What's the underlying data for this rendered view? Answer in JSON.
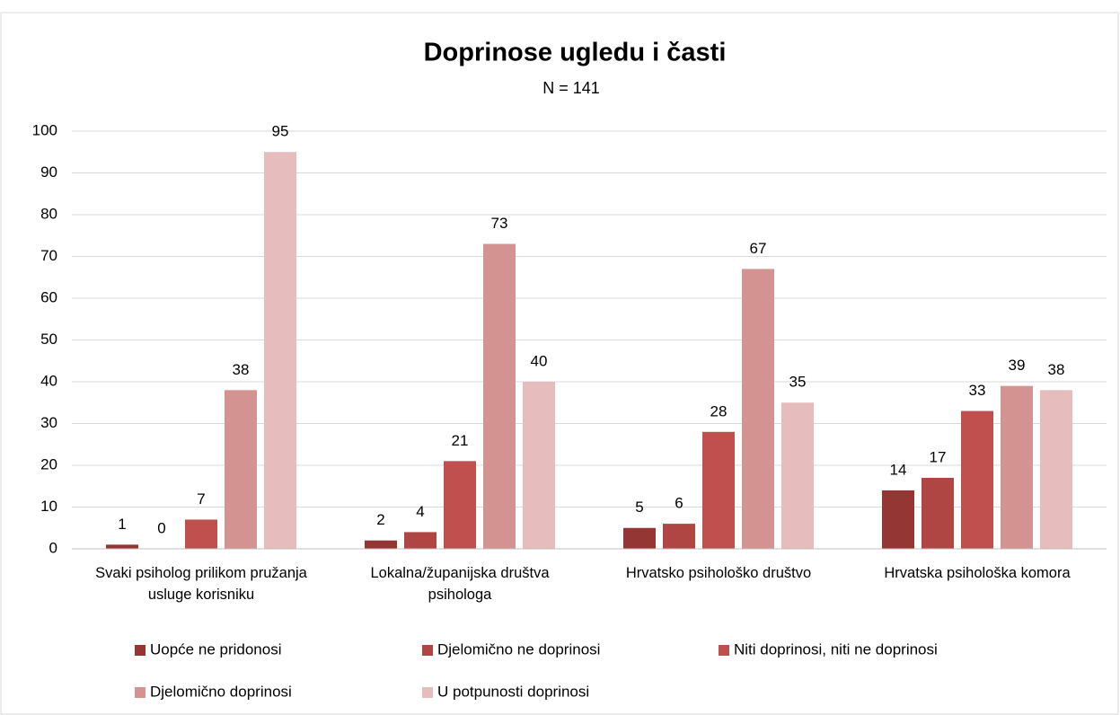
{
  "chart_data": {
    "type": "bar",
    "title": "Doprinose ugledu i časti",
    "subtitle": "N = 141",
    "categories": [
      "Svaki psiholog prilikom pružanja usluge korisniku",
      "Lokalna/županijska društva psihologa",
      "Hrvatsko psihološko društvo",
      "Hrvatska psihološka komora"
    ],
    "series": [
      {
        "name": "Uopće ne pridonosi",
        "color": "#943634",
        "values": [
          1,
          2,
          5,
          14
        ]
      },
      {
        "name": "Djelomično ne doprinosi",
        "color": "#b04644",
        "values": [
          0,
          4,
          6,
          17
        ]
      },
      {
        "name": "Niti doprinosi, niti ne doprinosi",
        "color": "#c0504d",
        "values": [
          7,
          21,
          28,
          33
        ]
      },
      {
        "name": "Djelomično doprinosi",
        "color": "#d39391",
        "values": [
          38,
          73,
          67,
          39
        ]
      },
      {
        "name": "U potpunosti doprinosi",
        "color": "#e6bcbc",
        "values": [
          95,
          40,
          35,
          38
        ]
      }
    ],
    "ylim": [
      0,
      100
    ],
    "yticks": [
      0,
      10,
      20,
      30,
      40,
      50,
      60,
      70,
      80,
      90,
      100
    ],
    "grid": true,
    "legend": "bottom"
  }
}
